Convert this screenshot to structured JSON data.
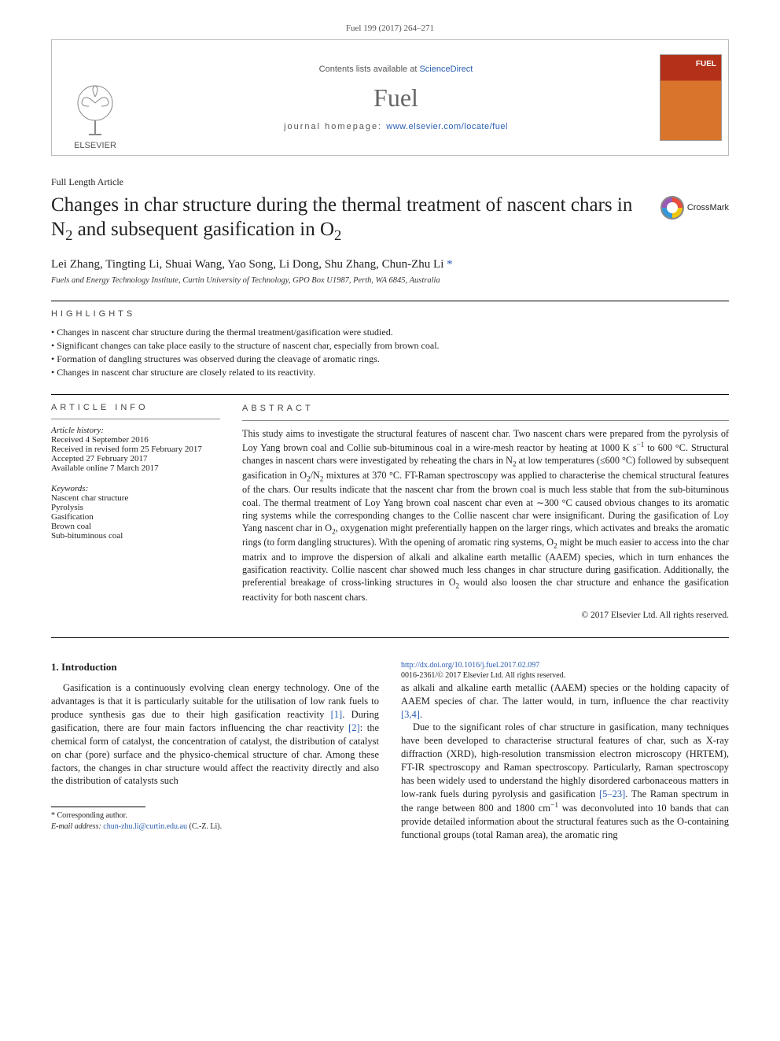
{
  "citation": "Fuel 199 (2017) 264–271",
  "masthead": {
    "publisher": "ELSEVIER",
    "contents_prefix": "Contents lists available at ",
    "contents_link": "ScienceDirect",
    "journal": "Fuel",
    "homepage_prefix": "journal homepage: ",
    "homepage_url": "www.elsevier.com/locate/fuel"
  },
  "article_type": "Full Length Article",
  "title_html": "Changes in char structure during the thermal treatment of nascent chars in N<sub>2</sub> and subsequent gasification in O<sub>2</sub>",
  "crossmark_label": "CrossMark",
  "authors_html": "Lei Zhang, Tingting Li, Shuai Wang, Yao Song, Li Dong, Shu Zhang, Chun-Zhu Li <a class='corr-star'>*</a>",
  "affiliation": "Fuels and Energy Technology Institute, Curtin University of Technology, GPO Box U1987, Perth, WA 6845, Australia",
  "highlights_label": "highlights",
  "highlights": [
    "Changes in nascent char structure during the thermal treatment/gasification were studied.",
    "Significant changes can take place easily to the structure of nascent char, especially from brown coal.",
    "Formation of dangling structures was observed during the cleavage of aromatic rings.",
    "Changes in nascent char structure are closely related to its reactivity."
  ],
  "info_label": "article info",
  "abstract_label": "abstract",
  "history_head": "Article history:",
  "history": [
    "Received 4 September 2016",
    "Received in revised form 25 February 2017",
    "Accepted 27 February 2017",
    "Available online 7 March 2017"
  ],
  "keywords_head": "Keywords:",
  "keywords": [
    "Nascent char structure",
    "Pyrolysis",
    "Gasification",
    "Brown coal",
    "Sub-bituminous coal"
  ],
  "abstract_html": "This study aims to investigate the structural features of nascent char. Two nascent chars were prepared from the pyrolysis of Loy Yang brown coal and Collie sub-bituminous coal in a wire-mesh reactor by heating at 1000 K s<sup>−1</sup> to 600 °C. Structural changes in nascent chars were investigated by reheating the chars in N<sub>2</sub> at low temperatures (≤600 °C) followed by subsequent gasification in O<sub>2</sub>/N<sub>2</sub> mixtures at 370 °C. FT-Raman spectroscopy was applied to characterise the chemical structural features of the chars. Our results indicate that the nascent char from the brown coal is much less stable that from the sub-bituminous coal. The thermal treatment of Loy Yang brown coal nascent char even at ∼300 °C caused obvious changes to its aromatic ring systems while the corresponding changes to the Collie nascent char were insignificant. During the gasification of Loy Yang nascent char in O<sub>2</sub>, oxygenation might preferentially happen on the larger rings, which activates and breaks the aromatic rings (to form dangling structures). With the opening of aromatic ring systems, O<sub>2</sub> might be much easier to access into the char matrix and to improve the dispersion of alkali and alkaline earth metallic (AAEM) species, which in turn enhances the gasification reactivity. Collie nascent char showed much less changes in char structure during gasification. Additionally, the preferential breakage of cross-linking structures in O<sub>2</sub> would also loosen the char structure and enhance the gasification reactivity for both nascent chars.",
  "copyright": "© 2017 Elsevier Ltd. All rights reserved.",
  "intro_heading": "1. Introduction",
  "intro_p1_html": "Gasification is a continuously evolving clean energy technology. One of the advantages is that it is particularly suitable for the utilisation of low rank fuels to produce synthesis gas due to their high gasification reactivity <span class='ref-link'>[1]</span>. During gasification, there are four main factors influencing the char reactivity <span class='ref-link'>[2]</span>: the chemical form of catalyst, the concentration of catalyst, the distribution of catalyst on char (pore) surface and the physico-chemical structure of char. Among these factors, the changes in char structure would affect the reactivity directly and also the distribution of catalysts such",
  "intro_p2_html": "as alkali and alkaline earth metallic (AAEM) species or the holding capacity of AAEM species of char. The latter would, in turn, influence the char reactivity <span class='ref-link'>[3,4]</span>.",
  "intro_p3_html": "Due to the significant roles of char structure in gasification, many techniques have been developed to characterise structural features of char, such as X-ray diffraction (XRD), high-resolution transmission electron microscopy (HRTEM), FT-IR spectroscopy and Raman spectroscopy. Particularly, Raman spectroscopy has been widely used to understand the highly disordered carbonaceous matters in low-rank fuels during pyrolysis and gasification <span class='ref-link'>[5–23]</span>. The Raman spectrum in the range between 800 and 1800 cm<sup>−1</sup> was deconvoluted into 10 bands that can provide detailed information about the structural features such as the O-containing functional groups (total Raman area), the aromatic ring",
  "footnote_marker": "* Corresponding author.",
  "footnote_email_label": "E-mail address: ",
  "footnote_email": "chun-zhu.li@curtin.edu.au",
  "footnote_email_who": " (C.-Z. Li).",
  "doi_url": "http://dx.doi.org/10.1016/j.fuel.2017.02.097",
  "doi_line2": "0016-2361/© 2017 Elsevier Ltd. All rights reserved.",
  "colors": {
    "link": "#2a5db0",
    "text": "#222222",
    "rule": "#000000"
  }
}
